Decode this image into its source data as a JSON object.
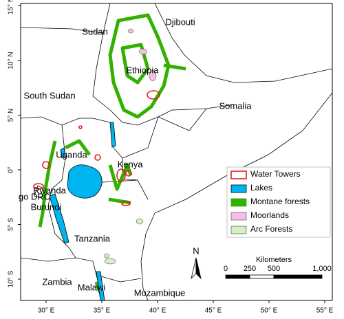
{
  "map": {
    "latitude_ticks": [
      {
        "value": 15,
        "label": "15° N"
      },
      {
        "value": 10,
        "label": "10° N"
      },
      {
        "value": 5,
        "label": "5° N"
      },
      {
        "value": 0,
        "label": "0°"
      },
      {
        "value": -5,
        "label": "5° S"
      },
      {
        "value": -10,
        "label": "10° S"
      }
    ],
    "longitude_ticks": [
      {
        "value": 30,
        "label": "30° E"
      },
      {
        "value": 35,
        "label": "35° E"
      },
      {
        "value": 40,
        "label": "40° E"
      },
      {
        "value": 45,
        "label": "45° E"
      },
      {
        "value": 50,
        "label": "50° E"
      },
      {
        "value": 55,
        "label": "55° E"
      }
    ],
    "places": [
      "Sudan",
      "Djibouti",
      "Ethiopia",
      "South Sudan",
      "Somalia",
      "Uganda",
      "Kenya",
      "Rwanda",
      "go DRC",
      "Burundi",
      "Tanzania",
      "Zambia",
      "Malawi",
      "Mozambique"
    ],
    "legend": [
      "Water Towers",
      "Lakes",
      "Montane forests",
      "Moorlands",
      "Arc Forests"
    ],
    "scale_bar": {
      "title": "Kilometers",
      "ticks": [
        {
          "value": 0,
          "label": "0"
        },
        {
          "value": 250,
          "label": "250"
        },
        {
          "value": 500,
          "label": "500"
        },
        {
          "value": 1000,
          "label": "1,000"
        }
      ]
    },
    "north_arrow": "N"
  }
}
